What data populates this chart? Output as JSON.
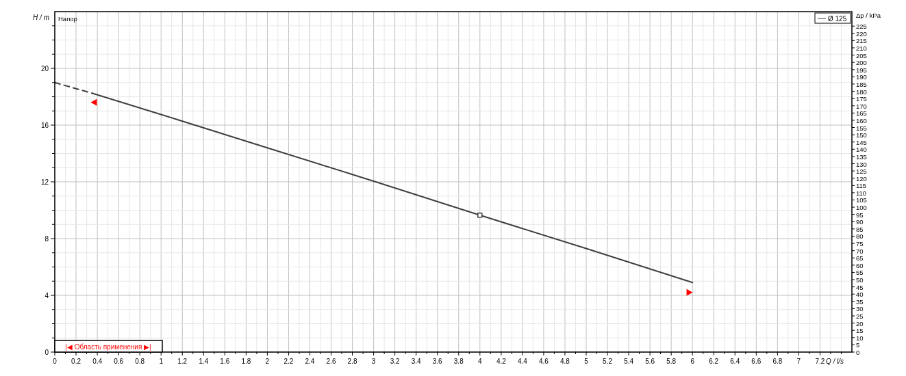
{
  "chart_data": {
    "type": "line",
    "xlabel": "Q / l/s",
    "ylabel": "H / m",
    "y2label": "Δp / kPa",
    "annotations": [
      "Напор",
      "|◀ Область применения ▶|"
    ],
    "xlim": [
      0,
      7.5
    ],
    "ylim": [
      0,
      24
    ],
    "y2lim": [
      0,
      235
    ],
    "xticks": [
      0,
      {
        "value": 0.1,
        "label": null
      },
      0.2,
      {
        "value": 0.3,
        "label": null
      },
      0.4,
      {
        "value": 0.5,
        "label": null
      },
      0.6,
      {
        "value": 0.7,
        "label": null
      },
      0.8,
      {
        "value": 0.9,
        "label": null
      },
      1,
      {
        "value": 1.1,
        "label": null
      },
      1.2,
      {
        "value": 1.3,
        "label": null
      },
      1.4,
      {
        "value": 1.5,
        "label": null
      },
      1.6,
      {
        "value": 1.7,
        "label": null
      },
      1.8,
      {
        "value": 1.9,
        "label": null
      },
      2,
      {
        "value": 2.1,
        "label": null
      },
      2.2,
      {
        "value": 2.3,
        "label": null
      },
      2.4,
      {
        "value": 2.5,
        "label": null
      },
      2.6,
      {
        "value": 2.7,
        "label": null
      },
      2.8,
      {
        "value": 2.9,
        "label": null
      },
      3,
      {
        "value": 3.1,
        "label": null
      },
      3.2,
      {
        "value": 3.3,
        "label": null
      },
      3.4,
      {
        "value": 3.5,
        "label": null
      },
      3.6,
      {
        "value": 3.7,
        "label": null
      },
      3.8,
      {
        "value": 3.9,
        "label": null
      },
      4,
      {
        "value": 4.1,
        "label": null
      },
      4.2,
      {
        "value": 4.3,
        "label": null
      },
      4.4,
      {
        "value": 4.5,
        "label": null
      },
      4.6,
      {
        "value": 4.7,
        "label": null
      },
      4.8,
      {
        "value": 4.9,
        "label": null
      },
      5,
      {
        "value": 5.1,
        "label": null
      },
      5.2,
      {
        "value": 5.3,
        "label": null
      },
      5.4,
      {
        "value": 5.5,
        "label": null
      },
      5.6,
      {
        "value": 5.7,
        "label": null
      },
      5.8,
      {
        "value": 5.9,
        "label": null
      },
      6,
      {
        "value": 6.1,
        "label": null
      },
      6.2,
      {
        "value": 6.3,
        "label": null
      },
      6.4,
      {
        "value": 6.5,
        "label": null
      },
      6.6,
      {
        "value": 6.7,
        "label": null
      },
      6.8,
      {
        "value": 6.9,
        "label": null
      },
      7,
      {
        "value": 7.1,
        "label": null
      },
      7.2,
      {
        "value": 7.3,
        "label": null
      },
      {
        "value": 7.4,
        "label": null
      }
    ],
    "yticks": [
      0,
      {
        "value": 1,
        "label": null
      },
      {
        "value": 2,
        "label": null
      },
      {
        "value": 3,
        "label": null
      },
      4,
      {
        "value": 5,
        "label": null
      },
      {
        "value": 6,
        "label": null
      },
      {
        "value": 7,
        "label": null
      },
      8,
      {
        "value": 9,
        "label": null
      },
      {
        "value": 10,
        "label": null
      },
      {
        "value": 11,
        "label": null
      },
      12,
      {
        "value": 13,
        "label": null
      },
      {
        "value": 14,
        "label": null
      },
      {
        "value": 15,
        "label": null
      },
      16,
      {
        "value": 17,
        "label": null
      },
      {
        "value": 18,
        "label": null
      },
      {
        "value": 19,
        "label": null
      },
      20,
      {
        "value": 21,
        "label": null
      },
      {
        "value": 22,
        "label": null
      },
      {
        "value": 23,
        "label": null
      }
    ],
    "y2ticks": [
      0,
      5,
      10,
      15,
      20,
      25,
      30,
      35,
      40,
      45,
      50,
      55,
      60,
      65,
      70,
      75,
      80,
      85,
      90,
      95,
      100,
      105,
      110,
      115,
      120,
      125,
      130,
      135,
      140,
      145,
      150,
      155,
      160,
      165,
      170,
      175,
      180,
      185,
      190,
      195,
      200,
      205,
      210,
      215,
      220,
      225
    ],
    "grid": true,
    "legend": "top right",
    "series": [
      {
        "name": "Ø 125",
        "color": "#404040",
        "x": [
          0.35,
          1,
          2,
          3,
          4,
          5,
          6
        ],
        "values": [
          18.25,
          16.75,
          14.4,
          12.05,
          9.65,
          7.3,
          4.9
        ]
      },
      {
        "color": "#404040",
        "line_style": "dashed",
        "x": [
          0,
          0.35
        ],
        "values": [
          19.0,
          18.25
        ]
      },
      {
        "type": "scatter",
        "marker": "square",
        "color": "#404040",
        "x": [
          4
        ],
        "values": [
          9.65
        ]
      },
      {
        "type": "scatter",
        "marker": "triangle",
        "color": "#ff0000",
        "x": [
          0.37,
          5.97
        ],
        "values": [
          17.6,
          4.2
        ]
      }
    ]
  }
}
